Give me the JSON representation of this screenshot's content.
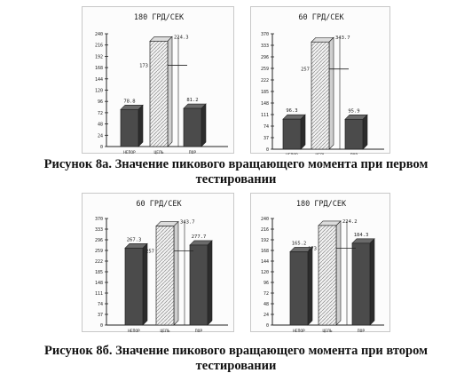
{
  "chart_data": [
    {
      "type": "bar",
      "title": "180 ГРД/СЕК",
      "categories": [
        "НЕПОР",
        "ЦЕЛЬ",
        "ПОР"
      ],
      "values": [
        78.8,
        224.3,
        81.2
      ],
      "value_labels": [
        "78.8",
        "224.3",
        "81.2"
      ],
      "target_marker": {
        "value": 173,
        "label": "173"
      },
      "yticks": [
        0,
        24,
        48,
        72,
        96,
        120,
        144,
        168,
        192,
        216,
        240
      ],
      "ylim": [
        0,
        240
      ],
      "grid": false
    },
    {
      "type": "bar",
      "title": "60 ГРД/СЕК",
      "categories": [
        "НЕПОР",
        "ЦЕЛЬ",
        "ПОР"
      ],
      "values": [
        96.3,
        343.7,
        95.9
      ],
      "value_labels": [
        "96.3",
        "343.7",
        "95.9"
      ],
      "target_marker": {
        "value": 257,
        "label": "257"
      },
      "yticks": [
        0,
        37,
        74,
        111,
        148,
        185,
        222,
        259,
        296,
        333,
        370
      ],
      "ylim": [
        0,
        370
      ],
      "grid": false
    },
    {
      "type": "bar",
      "title": "60 ГРД/СЕК",
      "categories": [
        "НЕПОР",
        "ЦЕЛЬ",
        "ПОР"
      ],
      "values": [
        267.3,
        343.7,
        277.7
      ],
      "value_labels": [
        "267.3",
        "343.7",
        "277.7"
      ],
      "target_marker": {
        "value": 257,
        "label": "257"
      },
      "yticks": [
        0,
        37,
        74,
        111,
        148,
        185,
        222,
        259,
        296,
        333,
        370
      ],
      "ylim": [
        0,
        370
      ],
      "grid": false
    },
    {
      "type": "bar",
      "title": "180 ГРД/СЕК",
      "categories": [
        "НЕПОР",
        "ЦЕЛЬ",
        "ПОР"
      ],
      "values": [
        165.2,
        224.2,
        184.3
      ],
      "value_labels": [
        "165.2",
        "224.2",
        "184.3"
      ],
      "target_marker": {
        "value": 173,
        "label": "173"
      },
      "yticks": [
        0,
        24,
        48,
        72,
        96,
        120,
        144,
        168,
        192,
        216,
        240
      ],
      "ylim": [
        0,
        240
      ],
      "grid": false
    }
  ],
  "colors": {
    "dark_bar": "#4a4a4a",
    "hatched_bar": "#e6e6e6",
    "axis": "#222222"
  },
  "captions": {
    "first": {
      "line1": "Рисунок 8а. Значение пикового вращающего момента при первом",
      "line2": "тестировании"
    },
    "second": {
      "line1": "Рисунок 8б. Значение пикового вращающего момента при втором",
      "line2": "тестировании"
    }
  }
}
